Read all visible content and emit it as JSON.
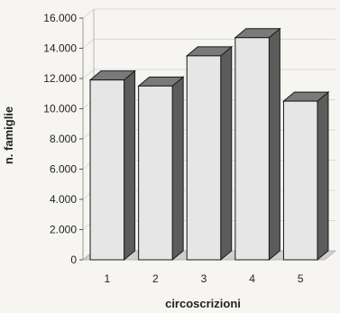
{
  "chart_data": {
    "type": "bar",
    "categories": [
      "1",
      "2",
      "3",
      "4",
      "5"
    ],
    "values": [
      11900,
      11500,
      13500,
      14700,
      10500
    ],
    "xlabel": "circoscrizioni",
    "ylabel": "n. famiglie",
    "ylim": [
      0,
      16000
    ],
    "yticks": [
      "0",
      "2.000",
      "4.000",
      "6.000",
      "8.000",
      "10.000",
      "12.000",
      "14.000",
      "16.000"
    ],
    "grid": true,
    "style": "3d-bar",
    "colors": {
      "bar_front": "#e6e6e6",
      "bar_top": "#7a7a7a",
      "bar_side": "#5c5c5c",
      "bar_edge": "#1a1a1a",
      "grid": "#d9d9d9",
      "wall": "#b8b8b8"
    }
  }
}
